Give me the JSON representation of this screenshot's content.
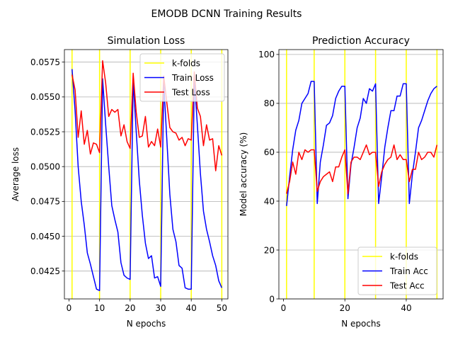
{
  "figure": {
    "suptitle": "EMODB DCNN Training Results"
  },
  "colors": {
    "kfolds": "#ffff00",
    "train": "#0000ff",
    "test": "#ff0000",
    "grid": "#b0b0b0"
  },
  "chart_data": [
    {
      "type": "line",
      "title": "Simulation Loss",
      "xlabel": "N epochs",
      "ylabel": "Average loss",
      "xlim": [
        -1.5,
        52.0
      ],
      "ylim": [
        0.0405,
        0.0584
      ],
      "xticks": [
        0,
        10,
        20,
        30,
        40,
        50
      ],
      "yticks": [
        0.0425,
        0.045,
        0.0475,
        0.05,
        0.0525,
        0.055,
        0.0575
      ],
      "ytick_labels": [
        "0.0425",
        "0.0450",
        "0.0475",
        "0.0500",
        "0.0525",
        "0.0550",
        "0.0575"
      ],
      "grid": "y",
      "legend_position": "upper-right",
      "kfold_lines": [
        1,
        10,
        20,
        30,
        40,
        50
      ],
      "series": [
        {
          "name": "k-folds",
          "role": "kfolds"
        },
        {
          "name": "Train Loss",
          "role": "train",
          "x": [
            1,
            2,
            3,
            4,
            5,
            6,
            7,
            8,
            9,
            10,
            11,
            12,
            13,
            14,
            15,
            16,
            17,
            18,
            19,
            20,
            21,
            22,
            23,
            24,
            25,
            26,
            27,
            28,
            29,
            30,
            31,
            32,
            33,
            34,
            35,
            36,
            37,
            38,
            39,
            40,
            41,
            42,
            43,
            44,
            45,
            46,
            47,
            48,
            49,
            50
          ],
          "y": [
            0.057,
            0.054,
            0.05,
            0.0475,
            0.0458,
            0.0438,
            0.043,
            0.0421,
            0.0412,
            0.0411,
            0.0563,
            0.053,
            0.05,
            0.0472,
            0.0462,
            0.0453,
            0.0431,
            0.0422,
            0.042,
            0.0419,
            0.0562,
            0.0525,
            0.049,
            0.0465,
            0.0445,
            0.0434,
            0.0436,
            0.042,
            0.0421,
            0.0414,
            0.056,
            0.052,
            0.048,
            0.0455,
            0.0446,
            0.0429,
            0.0427,
            0.0413,
            0.0412,
            0.0412,
            0.0563,
            0.053,
            0.0495,
            0.0468,
            0.0455,
            0.0446,
            0.0436,
            0.0429,
            0.0418,
            0.0413
          ]
        },
        {
          "name": "Test Loss",
          "role": "test",
          "x": [
            1,
            2,
            3,
            4,
            5,
            6,
            7,
            8,
            9,
            10,
            11,
            12,
            13,
            14,
            15,
            16,
            17,
            18,
            19,
            20,
            21,
            22,
            23,
            24,
            25,
            26,
            27,
            28,
            29,
            30,
            31,
            32,
            33,
            34,
            35,
            36,
            37,
            38,
            39,
            40,
            41,
            42,
            43,
            44,
            45,
            46,
            47,
            48,
            49,
            50
          ],
          "y": [
            0.0566,
            0.0555,
            0.0521,
            0.054,
            0.0516,
            0.0526,
            0.0509,
            0.0517,
            0.0516,
            0.051,
            0.0576,
            0.056,
            0.0536,
            0.0541,
            0.0539,
            0.0541,
            0.0522,
            0.053,
            0.0518,
            0.0513,
            0.0567,
            0.0539,
            0.0521,
            0.0522,
            0.0536,
            0.0514,
            0.0518,
            0.0515,
            0.0527,
            0.0514,
            0.0565,
            0.0546,
            0.0528,
            0.0525,
            0.0524,
            0.0519,
            0.0521,
            0.0515,
            0.052,
            0.0519,
            0.0568,
            0.0542,
            0.0536,
            0.0515,
            0.053,
            0.0519,
            0.052,
            0.0497,
            0.0515,
            0.0508
          ]
        }
      ]
    },
    {
      "type": "line",
      "title": "Prediction Accuracy",
      "xlabel": "N epochs",
      "ylabel": "Model accuracy (%)",
      "xlim": [
        -1.5,
        52.0
      ],
      "ylim": [
        0,
        102
      ],
      "xticks": [
        0,
        20,
        40
      ],
      "yticks": [
        0,
        20,
        40,
        60,
        80,
        100
      ],
      "ytick_labels": [
        "0",
        "20",
        "40",
        "60",
        "80",
        "100"
      ],
      "grid": "y",
      "legend_position": "lower-right",
      "kfold_lines": [
        1,
        10,
        20,
        30,
        40,
        50
      ],
      "series": [
        {
          "name": "k-folds",
          "role": "kfolds"
        },
        {
          "name": "Train Acc",
          "role": "train",
          "x": [
            1,
            2,
            3,
            4,
            5,
            6,
            7,
            8,
            9,
            10,
            11,
            12,
            13,
            14,
            15,
            16,
            17,
            18,
            19,
            20,
            21,
            22,
            23,
            24,
            25,
            26,
            27,
            28,
            29,
            30,
            31,
            32,
            33,
            34,
            35,
            36,
            37,
            38,
            39,
            40,
            41,
            42,
            43,
            44,
            45,
            46,
            47,
            48,
            49,
            50
          ],
          "y": [
            38,
            50,
            61,
            69,
            73,
            80,
            82,
            84,
            89,
            89,
            39,
            56,
            63,
            71,
            72,
            75,
            82,
            85,
            87,
            87,
            41,
            55,
            62,
            70,
            74,
            82,
            80,
            86,
            85,
            88,
            39,
            50,
            62,
            70,
            77,
            77,
            83,
            83,
            88,
            88,
            39,
            51,
            60,
            70,
            73,
            77,
            81,
            84,
            86,
            87
          ]
        },
        {
          "name": "Test Acc",
          "role": "test",
          "x": [
            1,
            2,
            3,
            4,
            5,
            6,
            7,
            8,
            9,
            10,
            11,
            12,
            13,
            14,
            15,
            16,
            17,
            18,
            19,
            20,
            21,
            22,
            23,
            24,
            25,
            26,
            27,
            28,
            29,
            30,
            31,
            32,
            33,
            34,
            35,
            36,
            37,
            38,
            39,
            40,
            41,
            42,
            43,
            44,
            45,
            46,
            47,
            48,
            49,
            50
          ],
          "y": [
            43,
            48,
            56,
            51,
            60,
            57,
            61,
            60,
            61,
            61,
            44,
            48,
            50,
            51,
            52,
            48,
            54,
            54,
            58,
            61,
            43,
            56,
            58,
            58,
            57,
            60,
            63,
            59,
            60,
            60,
            46,
            52,
            55,
            57,
            58,
            63,
            57,
            59,
            57,
            57,
            48,
            53,
            53,
            60,
            57,
            58,
            60,
            60,
            58,
            63
          ]
        }
      ]
    }
  ]
}
